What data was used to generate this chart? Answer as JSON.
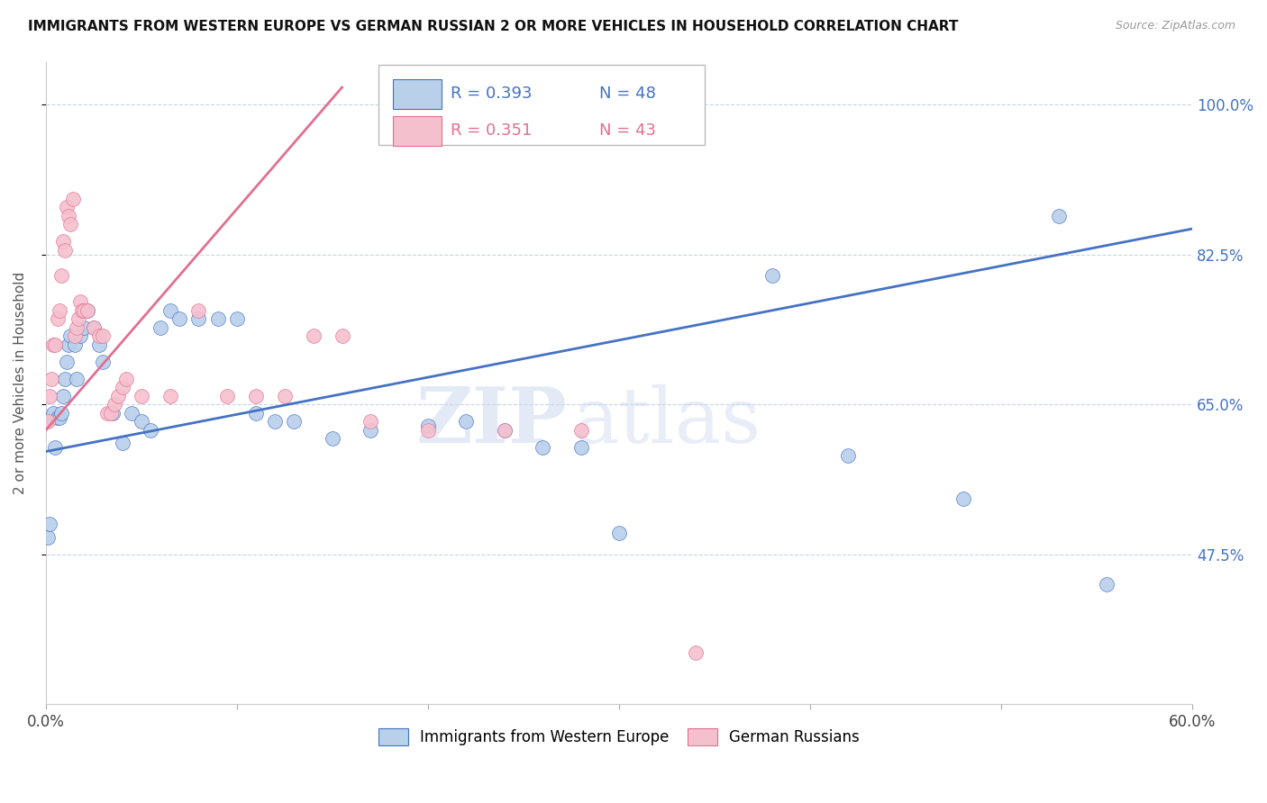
{
  "title": "IMMIGRANTS FROM WESTERN EUROPE VS GERMAN RUSSIAN 2 OR MORE VEHICLES IN HOUSEHOLD CORRELATION CHART",
  "source": "Source: ZipAtlas.com",
  "ylabel": "2 or more Vehicles in Household",
  "yticks": [
    "100.0%",
    "82.5%",
    "65.0%",
    "47.5%"
  ],
  "ytick_vals": [
    1.0,
    0.825,
    0.65,
    0.475
  ],
  "xmin": 0.0,
  "xmax": 0.6,
  "ymin": 0.3,
  "ymax": 1.05,
  "r_blue": 0.393,
  "n_blue": 48,
  "r_pink": 0.351,
  "n_pink": 43,
  "legend_label_blue": "Immigrants from Western Europe",
  "legend_label_pink": "German Russians",
  "color_blue": "#b8d0ea",
  "color_pink": "#f5c0ce",
  "line_blue": "#4472c4",
  "line_pink": "#e07090",
  "watermark_zip": "ZIP",
  "watermark_atlas": "atlas",
  "blue_line_x0": 0.0,
  "blue_line_y0": 0.595,
  "blue_line_x1": 0.6,
  "blue_line_y1": 0.855,
  "pink_line_x0": 0.0,
  "pink_line_y0": 0.62,
  "pink_line_x1": 0.155,
  "pink_line_y1": 1.02,
  "scatter_blue_x": [
    0.001,
    0.002,
    0.003,
    0.004,
    0.005,
    0.006,
    0.007,
    0.008,
    0.009,
    0.01,
    0.011,
    0.012,
    0.013,
    0.015,
    0.016,
    0.018,
    0.02,
    0.022,
    0.025,
    0.028,
    0.03,
    0.035,
    0.04,
    0.045,
    0.05,
    0.055,
    0.06,
    0.065,
    0.07,
    0.08,
    0.09,
    0.1,
    0.11,
    0.12,
    0.13,
    0.15,
    0.17,
    0.2,
    0.22,
    0.24,
    0.26,
    0.28,
    0.3,
    0.38,
    0.42,
    0.48,
    0.53,
    0.555
  ],
  "scatter_blue_y": [
    0.495,
    0.51,
    0.635,
    0.64,
    0.6,
    0.635,
    0.635,
    0.64,
    0.66,
    0.68,
    0.7,
    0.72,
    0.73,
    0.72,
    0.68,
    0.73,
    0.74,
    0.76,
    0.74,
    0.72,
    0.7,
    0.64,
    0.605,
    0.64,
    0.63,
    0.62,
    0.74,
    0.76,
    0.75,
    0.75,
    0.75,
    0.75,
    0.64,
    0.63,
    0.63,
    0.61,
    0.62,
    0.625,
    0.63,
    0.62,
    0.6,
    0.6,
    0.5,
    0.8,
    0.59,
    0.54,
    0.87,
    0.44
  ],
  "scatter_pink_x": [
    0.001,
    0.002,
    0.003,
    0.004,
    0.005,
    0.006,
    0.007,
    0.008,
    0.009,
    0.01,
    0.011,
    0.012,
    0.013,
    0.014,
    0.015,
    0.016,
    0.017,
    0.018,
    0.019,
    0.02,
    0.022,
    0.025,
    0.028,
    0.03,
    0.032,
    0.034,
    0.036,
    0.038,
    0.04,
    0.042,
    0.05,
    0.065,
    0.08,
    0.095,
    0.11,
    0.125,
    0.14,
    0.155,
    0.17,
    0.2,
    0.24,
    0.28,
    0.34
  ],
  "scatter_pink_y": [
    0.63,
    0.66,
    0.68,
    0.72,
    0.72,
    0.75,
    0.76,
    0.8,
    0.84,
    0.83,
    0.88,
    0.87,
    0.86,
    0.89,
    0.73,
    0.74,
    0.75,
    0.77,
    0.76,
    0.76,
    0.76,
    0.74,
    0.73,
    0.73,
    0.64,
    0.64,
    0.65,
    0.66,
    0.67,
    0.68,
    0.66,
    0.66,
    0.76,
    0.66,
    0.66,
    0.66,
    0.73,
    0.73,
    0.63,
    0.62,
    0.62,
    0.62,
    0.36
  ]
}
